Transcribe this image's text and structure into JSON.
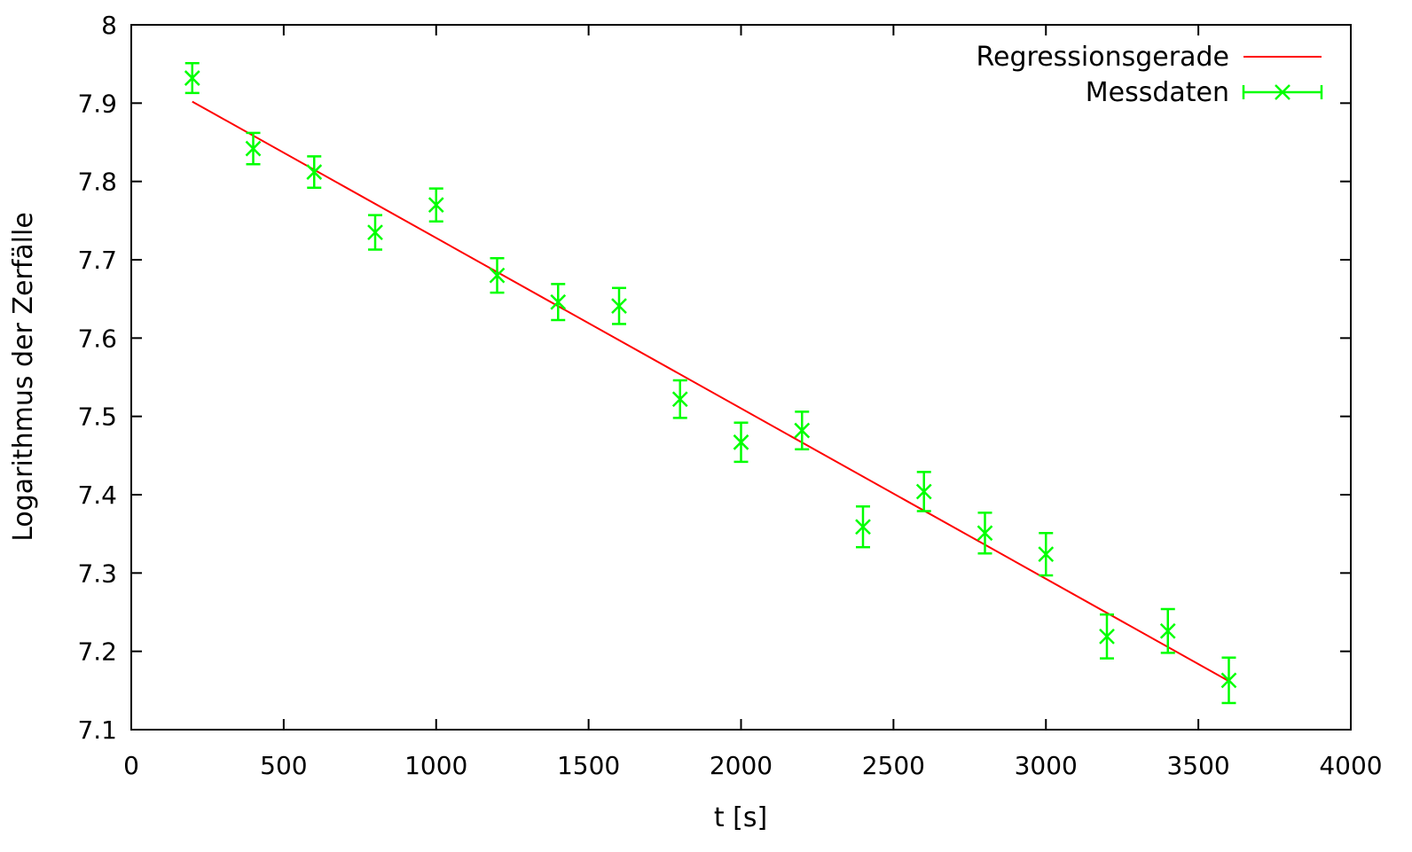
{
  "chart_data": {
    "type": "scatter",
    "title": "",
    "xlabel": "t [s]",
    "ylabel": "Logarithmus der Zerfälle",
    "xlim": [
      0,
      4000
    ],
    "ylim": [
      7.1,
      8.0
    ],
    "xticks": [
      0,
      500,
      1000,
      1500,
      2000,
      2500,
      3000,
      3500,
      4000
    ],
    "yticks": [
      7.1,
      7.2,
      7.3,
      7.4,
      7.5,
      7.6,
      7.7,
      7.8,
      7.9,
      8
    ],
    "xtick_labels": [
      "0",
      "500",
      "1000",
      "1500",
      "2000",
      "2500",
      "3000",
      "3500",
      "4000"
    ],
    "ytick_labels": [
      "7.1",
      "7.2",
      "7.3",
      "7.4",
      "7.5",
      "7.6",
      "7.7",
      "7.8",
      "7.9",
      "8"
    ],
    "grid": false,
    "legend_position": "top-right",
    "series": [
      {
        "name": "Regressionsgerade",
        "kind": "line",
        "color": "#ff0000",
        "x": [
          200,
          3600
        ],
        "y": [
          7.902,
          7.162
        ]
      },
      {
        "name": "Messdaten",
        "kind": "errorbars",
        "color": "#00ff00",
        "x": [
          200,
          400,
          600,
          800,
          1000,
          1200,
          1400,
          1600,
          1800,
          2000,
          2200,
          2400,
          2600,
          2800,
          3000,
          3200,
          3400,
          3600
        ],
        "y": [
          7.932,
          7.842,
          7.812,
          7.735,
          7.77,
          7.68,
          7.646,
          7.641,
          7.522,
          7.467,
          7.482,
          7.359,
          7.404,
          7.351,
          7.324,
          7.219,
          7.226,
          7.163
        ],
        "err": [
          0.019,
          0.02,
          0.02,
          0.022,
          0.021,
          0.022,
          0.023,
          0.023,
          0.024,
          0.025,
          0.024,
          0.026,
          0.025,
          0.026,
          0.027,
          0.028,
          0.028,
          0.029
        ]
      }
    ]
  }
}
